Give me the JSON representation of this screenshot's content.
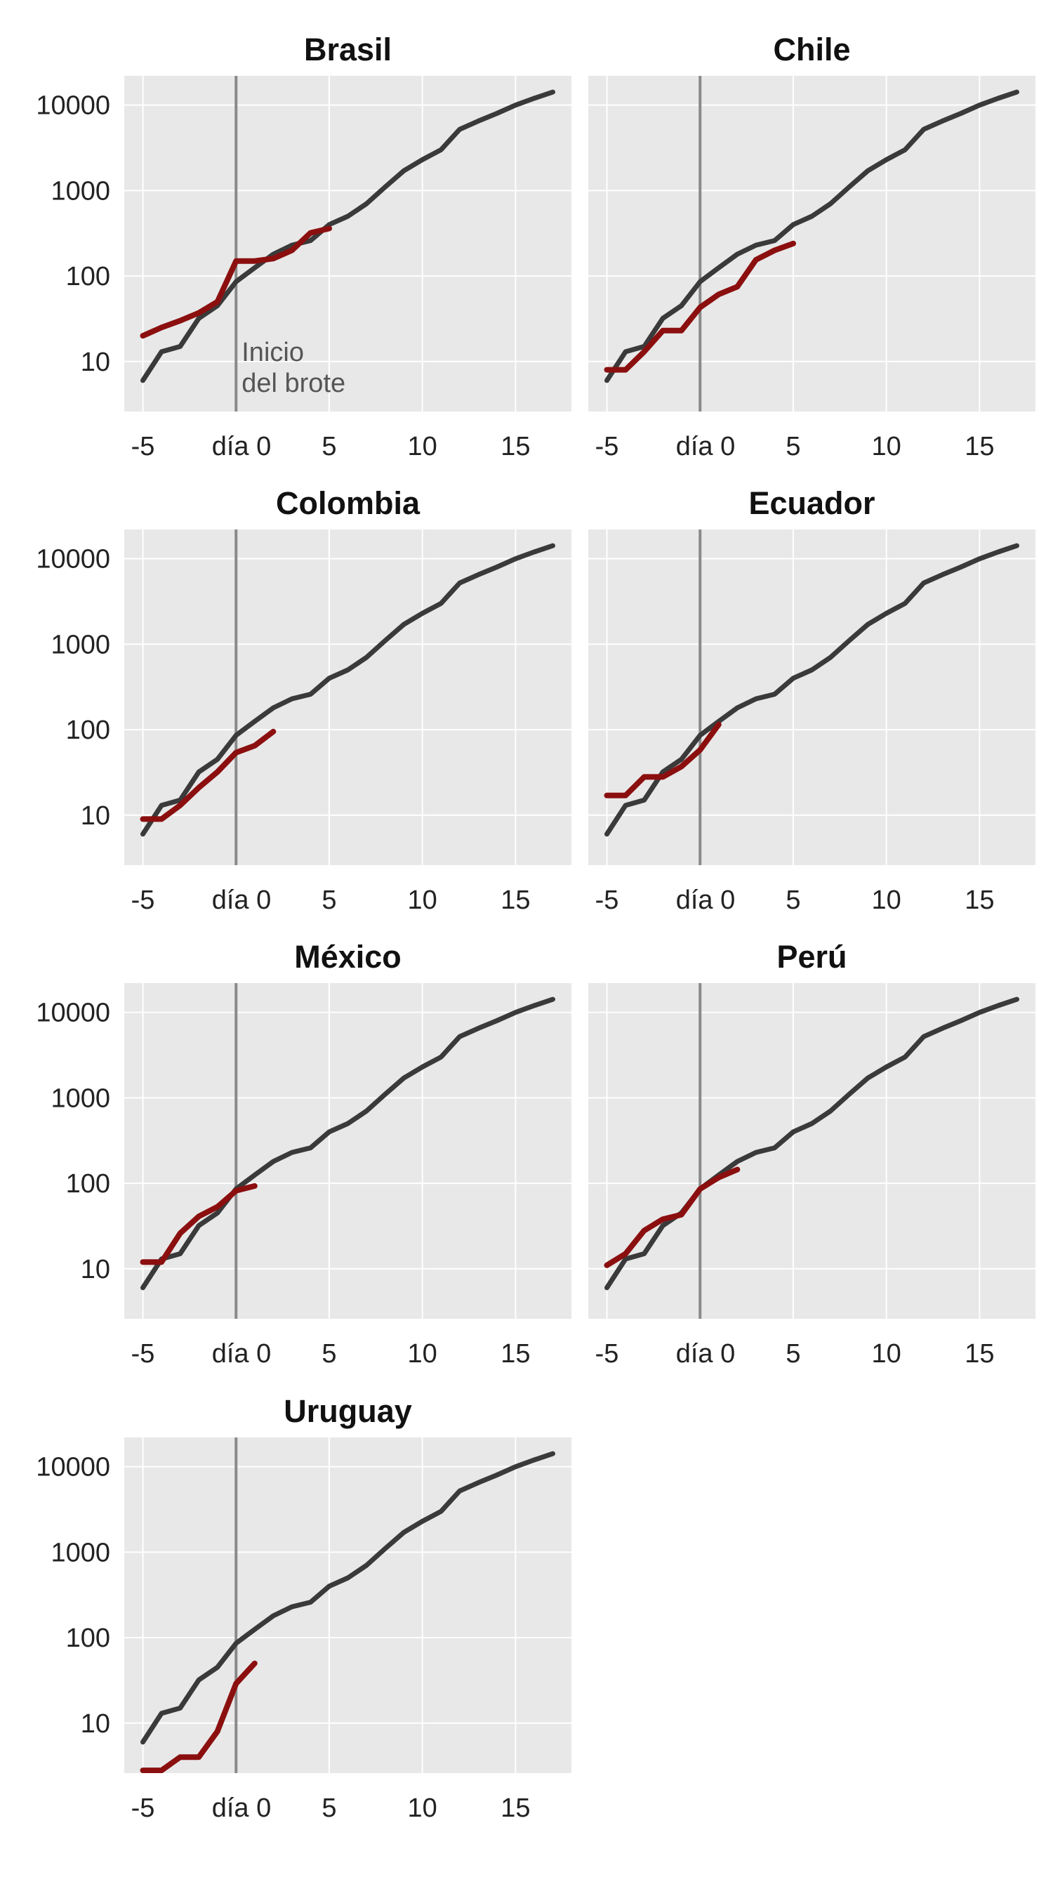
{
  "chart_data": [
    {
      "type": "line",
      "title": "Brasil",
      "log_y": true,
      "grid": true,
      "reference_line_x": 0,
      "annotation": [
        "Inicio",
        "del brote"
      ],
      "x_ticks": [
        "-5",
        "día 0",
        "5",
        "10",
        "15"
      ],
      "y_ticks": [
        "10",
        "100",
        "1000",
        "10000"
      ],
      "series": [
        {
          "color": "#3a3a3a",
          "x": [
            -5,
            -4,
            -3,
            -2,
            -1,
            0,
            1,
            2,
            3,
            4,
            5,
            6,
            7,
            8,
            9,
            10,
            11,
            12,
            13,
            14,
            15,
            16,
            17
          ],
          "y": [
            6,
            13,
            15,
            32,
            45,
            86,
            125,
            180,
            230,
            260,
            400,
            500,
            700,
            1100,
            1700,
            2300,
            3000,
            5200,
            6500,
            8000,
            10000,
            12000,
            14200
          ]
        },
        {
          "color": "#8b0f0f",
          "x": [
            -5,
            -4,
            -3,
            -2,
            -1,
            0,
            1,
            2,
            3,
            4,
            5
          ],
          "y": [
            20,
            25,
            30,
            37,
            50,
            150,
            150,
            160,
            200,
            320,
            360
          ]
        }
      ]
    },
    {
      "type": "line",
      "title": "Chile",
      "log_y": true,
      "grid": true,
      "reference_line_x": 0,
      "x_ticks": [
        "-5",
        "día 0",
        "5",
        "10",
        "15"
      ],
      "y_ticks": [],
      "series": [
        {
          "color": "#3a3a3a",
          "x": [
            -5,
            -4,
            -3,
            -2,
            -1,
            0,
            1,
            2,
            3,
            4,
            5,
            6,
            7,
            8,
            9,
            10,
            11,
            12,
            13,
            14,
            15,
            16,
            17
          ],
          "y": [
            6,
            13,
            15,
            32,
            45,
            86,
            125,
            180,
            230,
            260,
            400,
            500,
            700,
            1100,
            1700,
            2300,
            3000,
            5200,
            6500,
            8000,
            10000,
            12000,
            14200
          ]
        },
        {
          "color": "#8b0f0f",
          "x": [
            -5,
            -4,
            -3,
            -2,
            -1,
            0,
            1,
            2,
            3,
            4,
            5
          ],
          "y": [
            8,
            8,
            13,
            23,
            23,
            43,
            61,
            75,
            155,
            200,
            240
          ]
        }
      ]
    },
    {
      "type": "line",
      "title": "Colombia",
      "log_y": true,
      "grid": true,
      "reference_line_x": 0,
      "x_ticks": [
        "-5",
        "día 0",
        "5",
        "10",
        "15"
      ],
      "y_ticks": [
        "10",
        "100",
        "1000",
        "10000"
      ],
      "series": [
        {
          "color": "#3a3a3a",
          "x": [
            -5,
            -4,
            -3,
            -2,
            -1,
            0,
            1,
            2,
            3,
            4,
            5,
            6,
            7,
            8,
            9,
            10,
            11,
            12,
            13,
            14,
            15,
            16,
            17
          ],
          "y": [
            6,
            13,
            15,
            32,
            45,
            86,
            125,
            180,
            230,
            260,
            400,
            500,
            700,
            1100,
            1700,
            2300,
            3000,
            5200,
            6500,
            8000,
            10000,
            12000,
            14200
          ]
        },
        {
          "color": "#8b0f0f",
          "x": [
            -5,
            -4,
            -3,
            -2,
            -1,
            0,
            1,
            2
          ],
          "y": [
            9,
            9,
            13,
            21,
            32,
            54,
            65,
            95
          ]
        }
      ]
    },
    {
      "type": "line",
      "title": "Ecuador",
      "log_y": true,
      "grid": true,
      "reference_line_x": 0,
      "x_ticks": [
        "-5",
        "día 0",
        "5",
        "10",
        "15"
      ],
      "y_ticks": [],
      "series": [
        {
          "color": "#3a3a3a",
          "x": [
            -5,
            -4,
            -3,
            -2,
            -1,
            0,
            1,
            2,
            3,
            4,
            5,
            6,
            7,
            8,
            9,
            10,
            11,
            12,
            13,
            14,
            15,
            16,
            17
          ],
          "y": [
            6,
            13,
            15,
            32,
            45,
            86,
            125,
            180,
            230,
            260,
            400,
            500,
            700,
            1100,
            1700,
            2300,
            3000,
            5200,
            6500,
            8000,
            10000,
            12000,
            14200
          ]
        },
        {
          "color": "#8b0f0f",
          "x": [
            -5,
            -4,
            -3,
            -2,
            -1,
            0,
            1
          ],
          "y": [
            17,
            17,
            28,
            28,
            37,
            58,
            115
          ]
        }
      ]
    },
    {
      "type": "line",
      "title": "México",
      "log_y": true,
      "grid": true,
      "reference_line_x": 0,
      "x_ticks": [
        "-5",
        "día 0",
        "5",
        "10",
        "15"
      ],
      "y_ticks": [
        "10",
        "100",
        "1000",
        "10000"
      ],
      "series": [
        {
          "color": "#3a3a3a",
          "x": [
            -5,
            -4,
            -3,
            -2,
            -1,
            0,
            1,
            2,
            3,
            4,
            5,
            6,
            7,
            8,
            9,
            10,
            11,
            12,
            13,
            14,
            15,
            16,
            17
          ],
          "y": [
            6,
            13,
            15,
            32,
            45,
            86,
            125,
            180,
            230,
            260,
            400,
            500,
            700,
            1100,
            1700,
            2300,
            3000,
            5200,
            6500,
            8000,
            10000,
            12000,
            14200
          ]
        },
        {
          "color": "#8b0f0f",
          "x": [
            -5,
            -4,
            -3,
            -2,
            -1,
            0,
            1
          ],
          "y": [
            12,
            12,
            26,
            41,
            53,
            82,
            93
          ]
        }
      ]
    },
    {
      "type": "line",
      "title": "Perú",
      "log_y": true,
      "grid": true,
      "reference_line_x": 0,
      "x_ticks": [
        "-5",
        "día 0",
        "5",
        "10",
        "15"
      ],
      "y_ticks": [],
      "series": [
        {
          "color": "#3a3a3a",
          "x": [
            -5,
            -4,
            -3,
            -2,
            -1,
            0,
            1,
            2,
            3,
            4,
            5,
            6,
            7,
            8,
            9,
            10,
            11,
            12,
            13,
            14,
            15,
            16,
            17
          ],
          "y": [
            6,
            13,
            15,
            32,
            45,
            86,
            125,
            180,
            230,
            260,
            400,
            500,
            700,
            1100,
            1700,
            2300,
            3000,
            5200,
            6500,
            8000,
            10000,
            12000,
            14200
          ]
        },
        {
          "color": "#8b0f0f",
          "x": [
            -5,
            -4,
            -3,
            -2,
            -1,
            0,
            1,
            2
          ],
          "y": [
            11,
            15,
            28,
            38,
            43,
            86,
            117,
            145
          ]
        }
      ]
    },
    {
      "type": "line",
      "title": "Uruguay",
      "log_y": true,
      "grid": true,
      "reference_line_x": 0,
      "x_ticks": [
        "-5",
        "día 0",
        "5",
        "10",
        "15"
      ],
      "y_ticks": [
        "10",
        "100",
        "1000",
        "10000"
      ],
      "series": [
        {
          "color": "#3a3a3a",
          "x": [
            -5,
            -4,
            -3,
            -2,
            -1,
            0,
            1,
            2,
            3,
            4,
            5,
            6,
            7,
            8,
            9,
            10,
            11,
            12,
            13,
            14,
            15,
            16,
            17
          ],
          "y": [
            6,
            13,
            15,
            32,
            45,
            86,
            125,
            180,
            230,
            260,
            400,
            500,
            700,
            1100,
            1700,
            2300,
            3000,
            5200,
            6500,
            8000,
            10000,
            12000,
            14200
          ]
        },
        {
          "color": "#8b0f0f",
          "x": [
            -5,
            -4,
            -3,
            -2,
            -1,
            0,
            1
          ],
          "y": [
            2.8,
            2.8,
            4,
            4,
            8,
            29,
            50
          ]
        }
      ]
    }
  ]
}
